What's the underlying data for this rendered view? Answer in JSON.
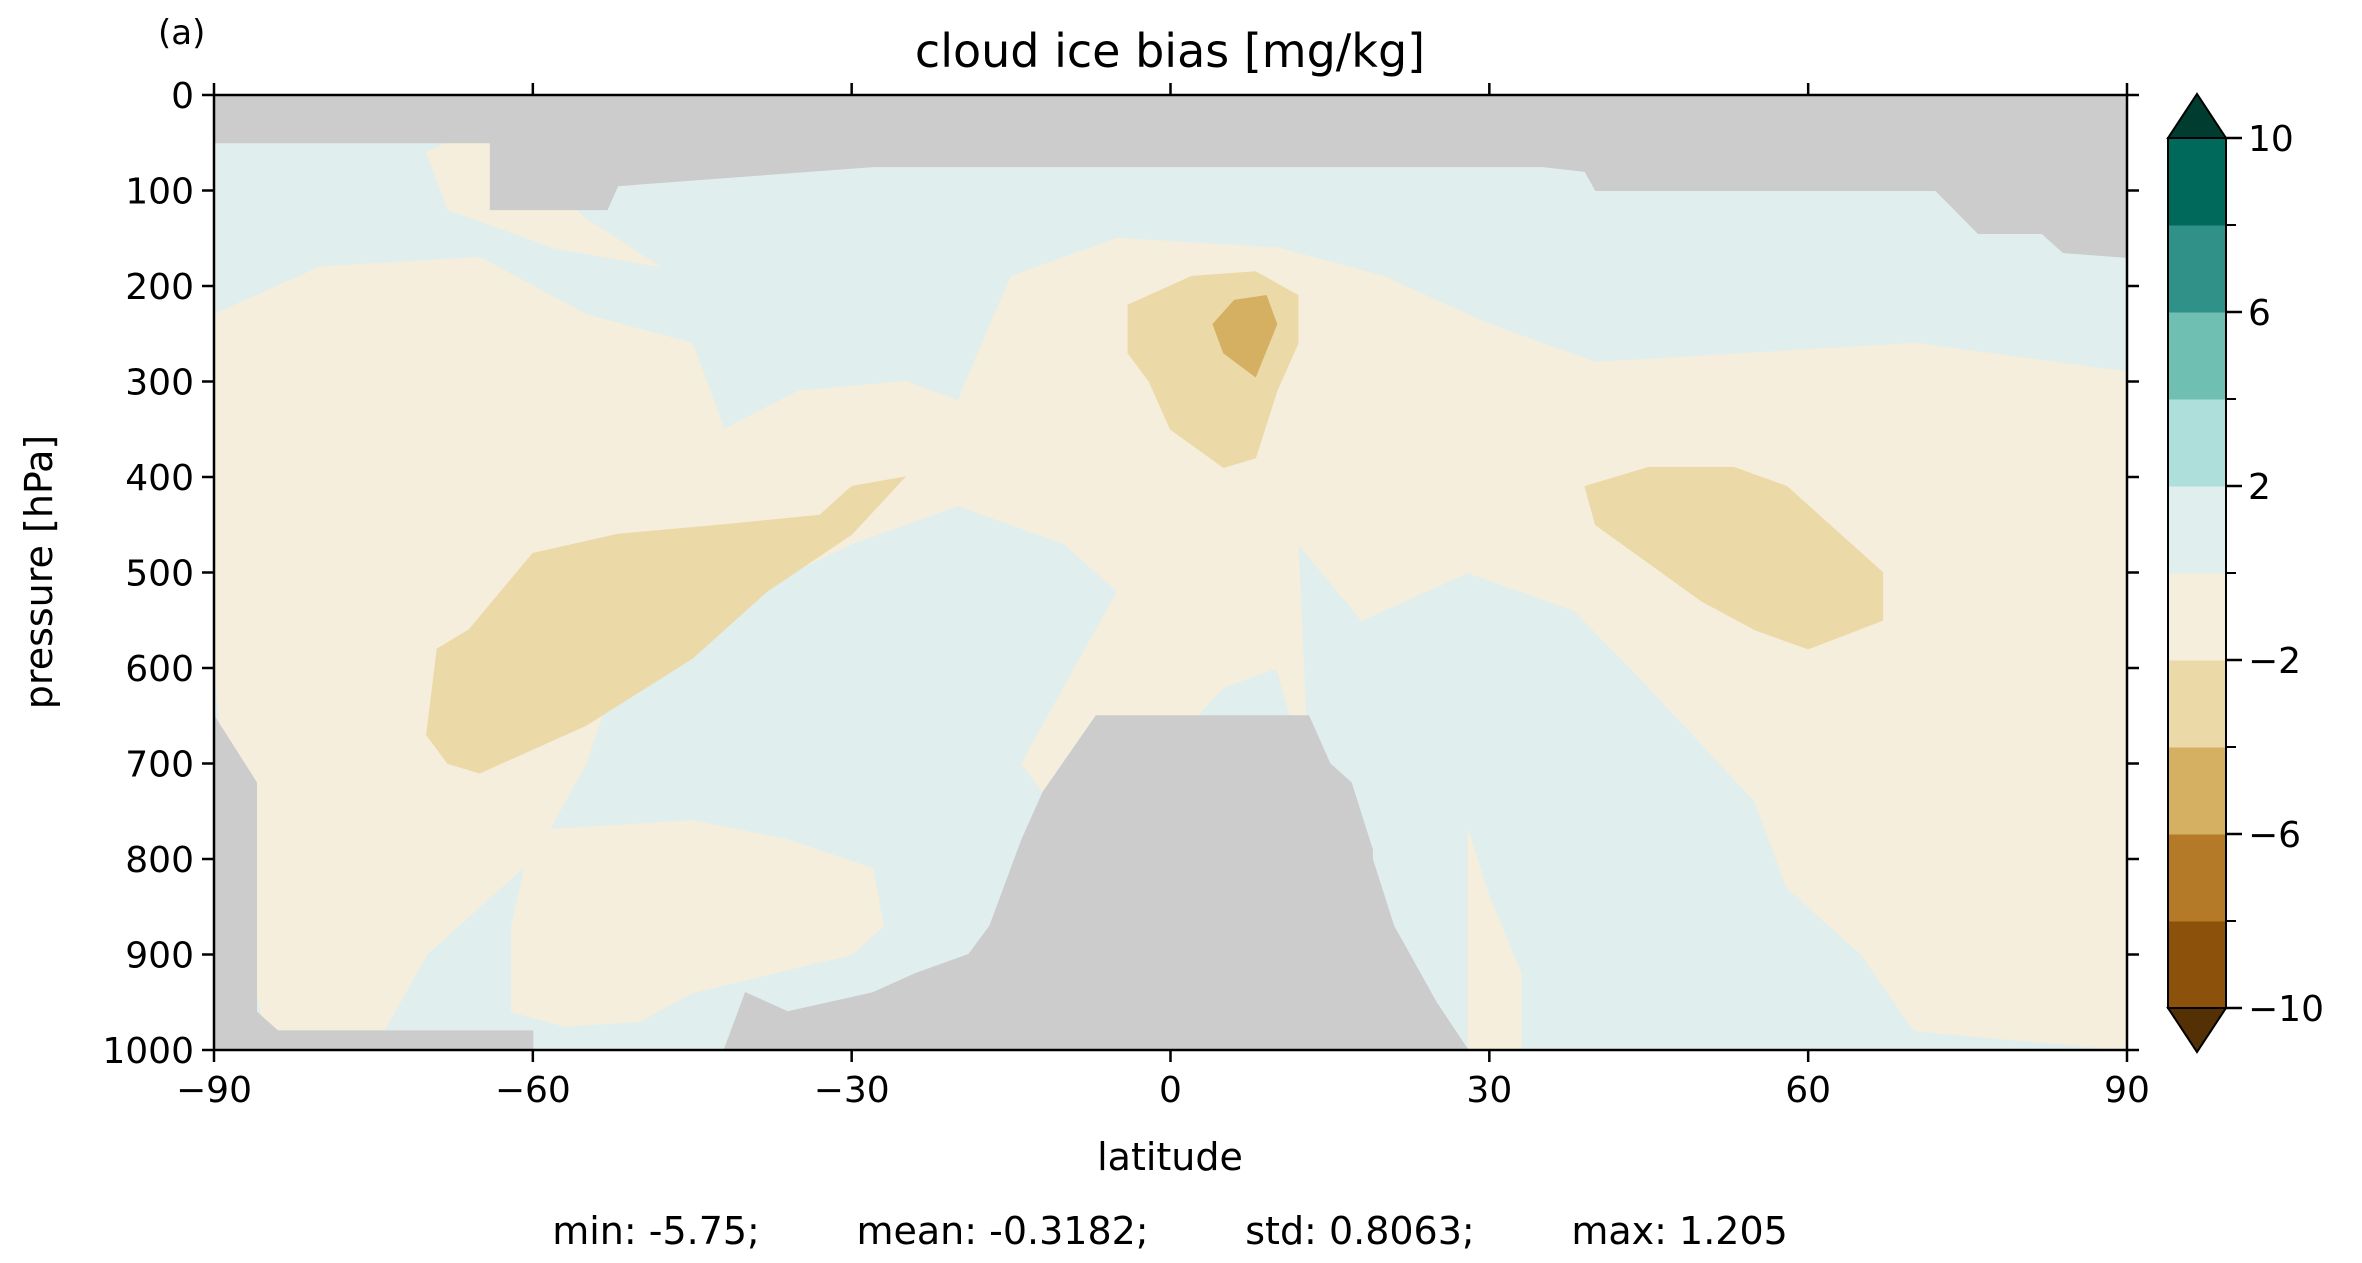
{
  "panel_label": "(a)",
  "chart_data": {
    "type": "contourf",
    "title": "cloud ice bias [mg/kg]",
    "xlabel": "latitude",
    "ylabel": "pressure [hPa]",
    "xlim": [
      -90,
      90
    ],
    "ylim": [
      1000,
      0
    ],
    "x_ticks": [
      -90,
      -60,
      -30,
      0,
      30,
      60,
      90
    ],
    "x_tick_labels": [
      "−90",
      "−60",
      "−30",
      "0",
      "30",
      "60",
      "90"
    ],
    "y_ticks": [
      0,
      100,
      200,
      300,
      400,
      500,
      600,
      700,
      800,
      900,
      1000
    ],
    "y_tick_labels": [
      "0",
      "100",
      "200",
      "300",
      "400",
      "500",
      "600",
      "700",
      "800",
      "900",
      "1000"
    ],
    "colorbar": {
      "levels": [
        -10,
        -8,
        -6,
        -4,
        -2,
        0,
        2,
        4,
        6,
        8,
        10
      ],
      "colors": [
        "#8c510a",
        "#b57a27",
        "#d5b063",
        "#ecd9a8",
        "#f5eedc",
        "#e0efee",
        "#aedfda",
        "#6fc0b3",
        "#2f9187",
        "#00695c"
      ],
      "extend_min_color": "#543005",
      "extend_max_color": "#003c30",
      "tick_values": [
        -10,
        -6,
        -2,
        2,
        6,
        10
      ],
      "tick_labels": [
        "−10",
        "−6",
        "−2",
        "2",
        "6",
        "10"
      ]
    },
    "missing_color": "#cccccc",
    "regions": [
      {
        "level": "0 to 2",
        "color": "#e0efee",
        "outline": [
          [
            -90,
            0
          ],
          [
            90,
            0
          ],
          [
            90,
            1000
          ],
          [
            -90,
            1000
          ]
        ]
      },
      {
        "level": "-2 to 0",
        "color": "#f5eedc",
        "outline": [
          [
            -90,
            230
          ],
          [
            -80,
            180
          ],
          [
            -65,
            170
          ],
          [
            -55,
            230
          ],
          [
            -45,
            260
          ],
          [
            -42,
            350
          ],
          [
            -35,
            310
          ],
          [
            -25,
            300
          ],
          [
            -20,
            320
          ],
          [
            -15,
            190
          ],
          [
            -5,
            150
          ],
          [
            10,
            160
          ],
          [
            20,
            190
          ],
          [
            30,
            240
          ],
          [
            40,
            280
          ],
          [
            55,
            270
          ],
          [
            70,
            260
          ],
          [
            90,
            290
          ],
          [
            90,
            1000
          ],
          [
            70,
            980
          ],
          [
            65,
            900
          ],
          [
            58,
            830
          ],
          [
            55,
            740
          ],
          [
            45,
            620
          ],
          [
            38,
            540
          ],
          [
            28,
            500
          ],
          [
            22,
            530
          ],
          [
            18,
            550
          ],
          [
            12,
            470
          ],
          [
            13,
            720
          ],
          [
            10,
            600
          ],
          [
            5,
            620
          ],
          [
            -5,
            740
          ],
          [
            -10,
            760
          ],
          [
            -14,
            700
          ],
          [
            -8,
            580
          ],
          [
            -5,
            520
          ],
          [
            -10,
            470
          ],
          [
            -20,
            430
          ],
          [
            -30,
            470
          ],
          [
            -45,
            550
          ],
          [
            -52,
            600
          ],
          [
            -55,
            700
          ],
          [
            -60,
            800
          ],
          [
            -70,
            900
          ],
          [
            -75,
            1000
          ],
          [
            -85,
            1000
          ],
          [
            -88,
            800
          ],
          [
            -90,
            600
          ]
        ]
      },
      {
        "level": "-2 to 0",
        "color": "#f5eedc",
        "outline": [
          [
            -60,
            770
          ],
          [
            -45,
            760
          ],
          [
            -36,
            780
          ],
          [
            -28,
            810
          ],
          [
            -27,
            870
          ],
          [
            -30,
            900
          ],
          [
            -45,
            940
          ],
          [
            -50,
            970
          ],
          [
            -57,
            975
          ],
          [
            -62,
            960
          ],
          [
            -62,
            870
          ]
        ]
      },
      {
        "level": "-2 to 0",
        "color": "#f5eedc",
        "outline": [
          [
            28,
            770
          ],
          [
            30,
            840
          ],
          [
            33,
            920
          ],
          [
            33,
            1000
          ],
          [
            28,
            1000
          ],
          [
            28,
            880
          ]
        ]
      },
      {
        "level": "-2 to 0",
        "color": "#f5eedc",
        "outline": [
          [
            -62,
            20
          ],
          [
            -60,
            80
          ],
          [
            -55,
            130
          ],
          [
            -48,
            180
          ],
          [
            -58,
            160
          ],
          [
            -68,
            120
          ],
          [
            -70,
            60
          ]
        ]
      },
      {
        "level": "-4 to -2",
        "color": "#ecd9a8",
        "outline": [
          [
            -70,
            670
          ],
          [
            -69,
            580
          ],
          [
            -66,
            560
          ],
          [
            -60,
            480
          ],
          [
            -52,
            460
          ],
          [
            -42,
            450
          ],
          [
            -33,
            440
          ],
          [
            -30,
            410
          ],
          [
            -25,
            400
          ],
          [
            -30,
            460
          ],
          [
            -38,
            520
          ],
          [
            -45,
            590
          ],
          [
            -55,
            660
          ],
          [
            -65,
            710
          ],
          [
            -68,
            700
          ]
        ]
      },
      {
        "level": "-4 to -2",
        "color": "#ecd9a8",
        "outline": [
          [
            -4,
            220
          ],
          [
            2,
            190
          ],
          [
            8,
            185
          ],
          [
            12,
            210
          ],
          [
            12,
            260
          ],
          [
            10,
            310
          ],
          [
            8,
            380
          ],
          [
            5,
            390
          ],
          [
            0,
            350
          ],
          [
            -2,
            300
          ],
          [
            -4,
            270
          ]
        ]
      },
      {
        "level": "-4 to -2",
        "color": "#ecd9a8",
        "outline": [
          [
            39,
            410
          ],
          [
            45,
            390
          ],
          [
            53,
            390
          ],
          [
            58,
            410
          ],
          [
            62,
            450
          ],
          [
            67,
            500
          ],
          [
            67,
            550
          ],
          [
            60,
            580
          ],
          [
            55,
            560
          ],
          [
            50,
            530
          ],
          [
            45,
            490
          ],
          [
            40,
            450
          ]
        ]
      },
      {
        "level": "-6 to -4",
        "color": "#d5b063",
        "outline": [
          [
            4,
            240
          ],
          [
            6,
            215
          ],
          [
            9,
            210
          ],
          [
            10,
            240
          ],
          [
            8,
            295
          ],
          [
            5,
            270
          ]
        ]
      },
      {
        "level": "missing",
        "color": "#cccccc",
        "outline": [
          [
            -90,
            0
          ],
          [
            90,
            0
          ],
          [
            90,
            170
          ],
          [
            84,
            165
          ],
          [
            82,
            145
          ],
          [
            76,
            145
          ],
          [
            72,
            100
          ],
          [
            40,
            100
          ],
          [
            39,
            80
          ],
          [
            35,
            75
          ],
          [
            -20,
            75
          ],
          [
            -20,
            75
          ],
          [
            -24,
            75
          ],
          [
            -28,
            75
          ],
          [
            -52,
            95
          ],
          [
            -53,
            120
          ],
          [
            -64,
            120
          ],
          [
            -64,
            50
          ],
          [
            -90,
            50
          ]
        ]
      },
      {
        "level": "missing",
        "color": "#cccccc",
        "outline": [
          [
            -90,
            650
          ],
          [
            -86,
            720
          ],
          [
            -86,
            960
          ],
          [
            -84,
            980
          ],
          [
            -60,
            980
          ],
          [
            -60,
            1000
          ],
          [
            -90,
            1000
          ]
        ]
      },
      {
        "level": "missing",
        "color": "#cccccc",
        "outline": [
          [
            -42,
            1000
          ],
          [
            -40,
            940
          ],
          [
            -36,
            960
          ],
          [
            -32,
            950
          ],
          [
            -28,
            940
          ],
          [
            -24,
            920
          ],
          [
            -19,
            900
          ],
          [
            -17,
            870
          ],
          [
            -14,
            780
          ],
          [
            -12,
            730
          ],
          [
            -7,
            650
          ],
          [
            13,
            650
          ],
          [
            15,
            700
          ],
          [
            17,
            720
          ],
          [
            19,
            790
          ],
          [
            19,
            800
          ],
          [
            21,
            870
          ],
          [
            25,
            950
          ],
          [
            28,
            1000
          ]
        ]
      }
    ]
  },
  "stats_line": "min: -5.75;        mean: -0.3182;        std: 0.8063;        max: 1.205"
}
